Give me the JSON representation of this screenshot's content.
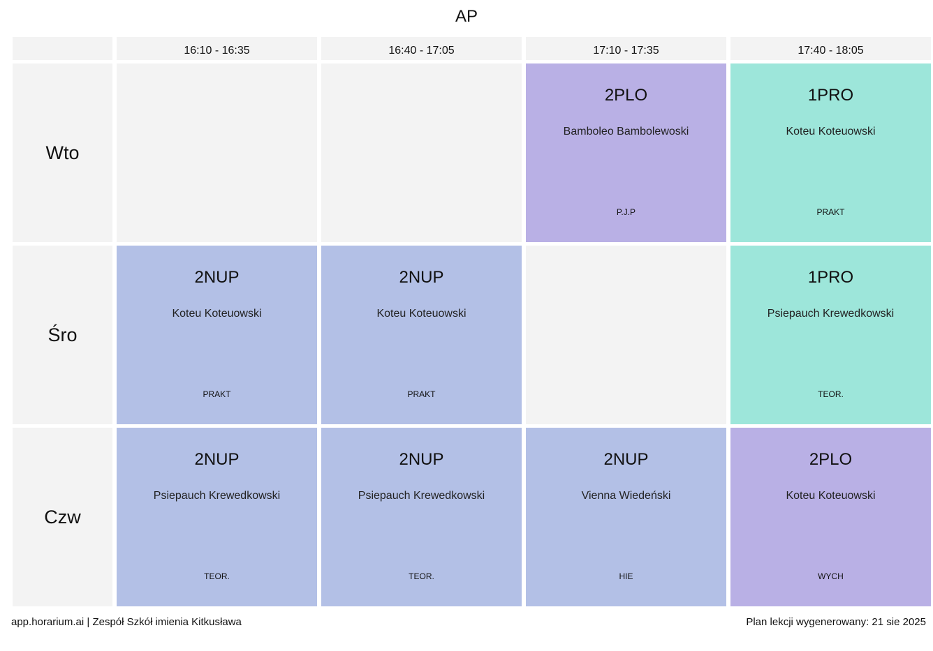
{
  "title": "AP",
  "times": [
    "16:10 - 16:35",
    "16:40 - 17:05",
    "17:10 - 17:35",
    "17:40 - 18:05"
  ],
  "days": [
    {
      "label": "Wto",
      "slots": [
        null,
        null,
        {
          "subject": "2PLO",
          "teacher": "Bamboleo Bambolewoski",
          "room": "P.J.P",
          "color": "#b9b0e5"
        },
        {
          "subject": "1PRO",
          "teacher": "Koteu Koteuowski",
          "room": "PRAKT",
          "color": "#9de6da"
        }
      ]
    },
    {
      "label": "Śro",
      "slots": [
        {
          "subject": "2NUP",
          "teacher": "Koteu Koteuowski",
          "room": "PRAKT",
          "color": "#b3c0e6"
        },
        {
          "subject": "2NUP",
          "teacher": "Koteu Koteuowski",
          "room": "PRAKT",
          "color": "#b3c0e6"
        },
        null,
        {
          "subject": "1PRO",
          "teacher": "Psiepauch Krewedkowski",
          "room": "TEOR.",
          "color": "#9de6da"
        }
      ]
    },
    {
      "label": "Czw",
      "slots": [
        {
          "subject": "2NUP",
          "teacher": "Psiepauch Krewedkowski",
          "room": "TEOR.",
          "color": "#b3c0e6"
        },
        {
          "subject": "2NUP",
          "teacher": "Psiepauch Krewedkowski",
          "room": "TEOR.",
          "color": "#b3c0e6"
        },
        {
          "subject": "2NUP",
          "teacher": "Vienna Wiedeński",
          "room": "HIE",
          "color": "#b3c0e6"
        },
        {
          "subject": "2PLO",
          "teacher": "Koteu Koteuowski",
          "room": "WYCH",
          "color": "#b9b0e5"
        }
      ]
    }
  ],
  "footer": {
    "left": "app.horarium.ai | Zespół Szkół imienia Kitkusława",
    "right": "Plan lekcji wygenerowany: 21 sie 2025"
  }
}
